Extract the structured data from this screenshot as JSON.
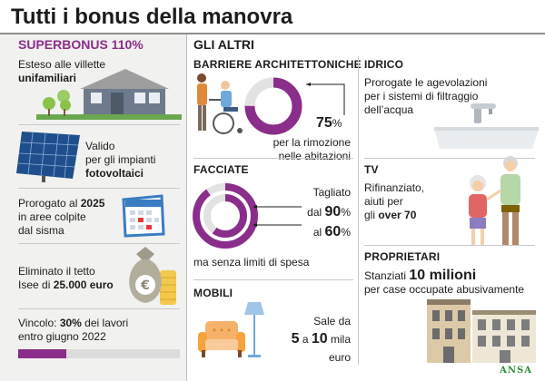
{
  "title": "Tutti i bonus della manovra",
  "superbonus": {
    "heading": "SUPERBONUS 110%",
    "item1": {
      "line1": "Esteso alle villette",
      "bold": "unifamiliari"
    },
    "item2": {
      "line1": "Valido",
      "line2": "per gli impianti",
      "bold": "fotovoltaici"
    },
    "item3": {
      "pre": "Prorogato al ",
      "bold": "2025",
      "line2": "in aree colpite",
      "line3": "dal sisma"
    },
    "item4": {
      "line1": "Eliminato il tetto",
      "pre": "Isee di ",
      "bold": "25.000 euro"
    },
    "item5": {
      "pre": "Vincolo: ",
      "bold": "30%",
      "post": " dei lavori",
      "line2": "entro giugno 2022",
      "progress": 0.3
    },
    "colors": {
      "accent": "#8b2d8a",
      "track": "#dcdcdc"
    }
  },
  "altri": {
    "heading": "GLI ALTRI",
    "barriere": {
      "heading": "BARRIERE ARCHITETTONICHE",
      "value": "75",
      "unit": "%",
      "line1": "per la rimozione",
      "line2": "nelle abitazioni",
      "pct": 0.75
    },
    "facciate": {
      "heading": "FACCIATE",
      "line1": "Tagliato",
      "pre1": "dal ",
      "v1": "90",
      "u1": "%",
      "pre2": "al ",
      "v2": "60",
      "u2": "%",
      "line4": "ma senza limiti di spesa",
      "outer_pct": 0.9,
      "inner_pct": 0.6
    },
    "mobili": {
      "heading": "MOBILI",
      "line1": "Sale da",
      "v1": "5",
      "mid": " a ",
      "v2": "10",
      "post": " mila",
      "line3": "euro"
    },
    "idrico": {
      "heading": "IDRICO",
      "line1": "Prorogate le agevolazioni",
      "line2": "per i sistemi di filtraggio",
      "line3": "dell’acqua"
    },
    "tv": {
      "heading": "TV",
      "line1": "Rifinanziato,",
      "line2": "aiuti per",
      "pre": "gli ",
      "bold": "over 70"
    },
    "proprietari": {
      "heading": "PROPRIETARI",
      "pre": "Stanziati ",
      "bold": "10 milioni",
      "line2": "per case occupate abusivamente"
    }
  },
  "source": "ANSA",
  "icons": [
    "house-icon",
    "solar-panel-icon",
    "calendar-icon",
    "money-bag-icon",
    "wheelchair-icon",
    "armchair-icon",
    "lamp-icon",
    "faucet-icon",
    "elderly-couple-icon",
    "buildings-icon"
  ]
}
